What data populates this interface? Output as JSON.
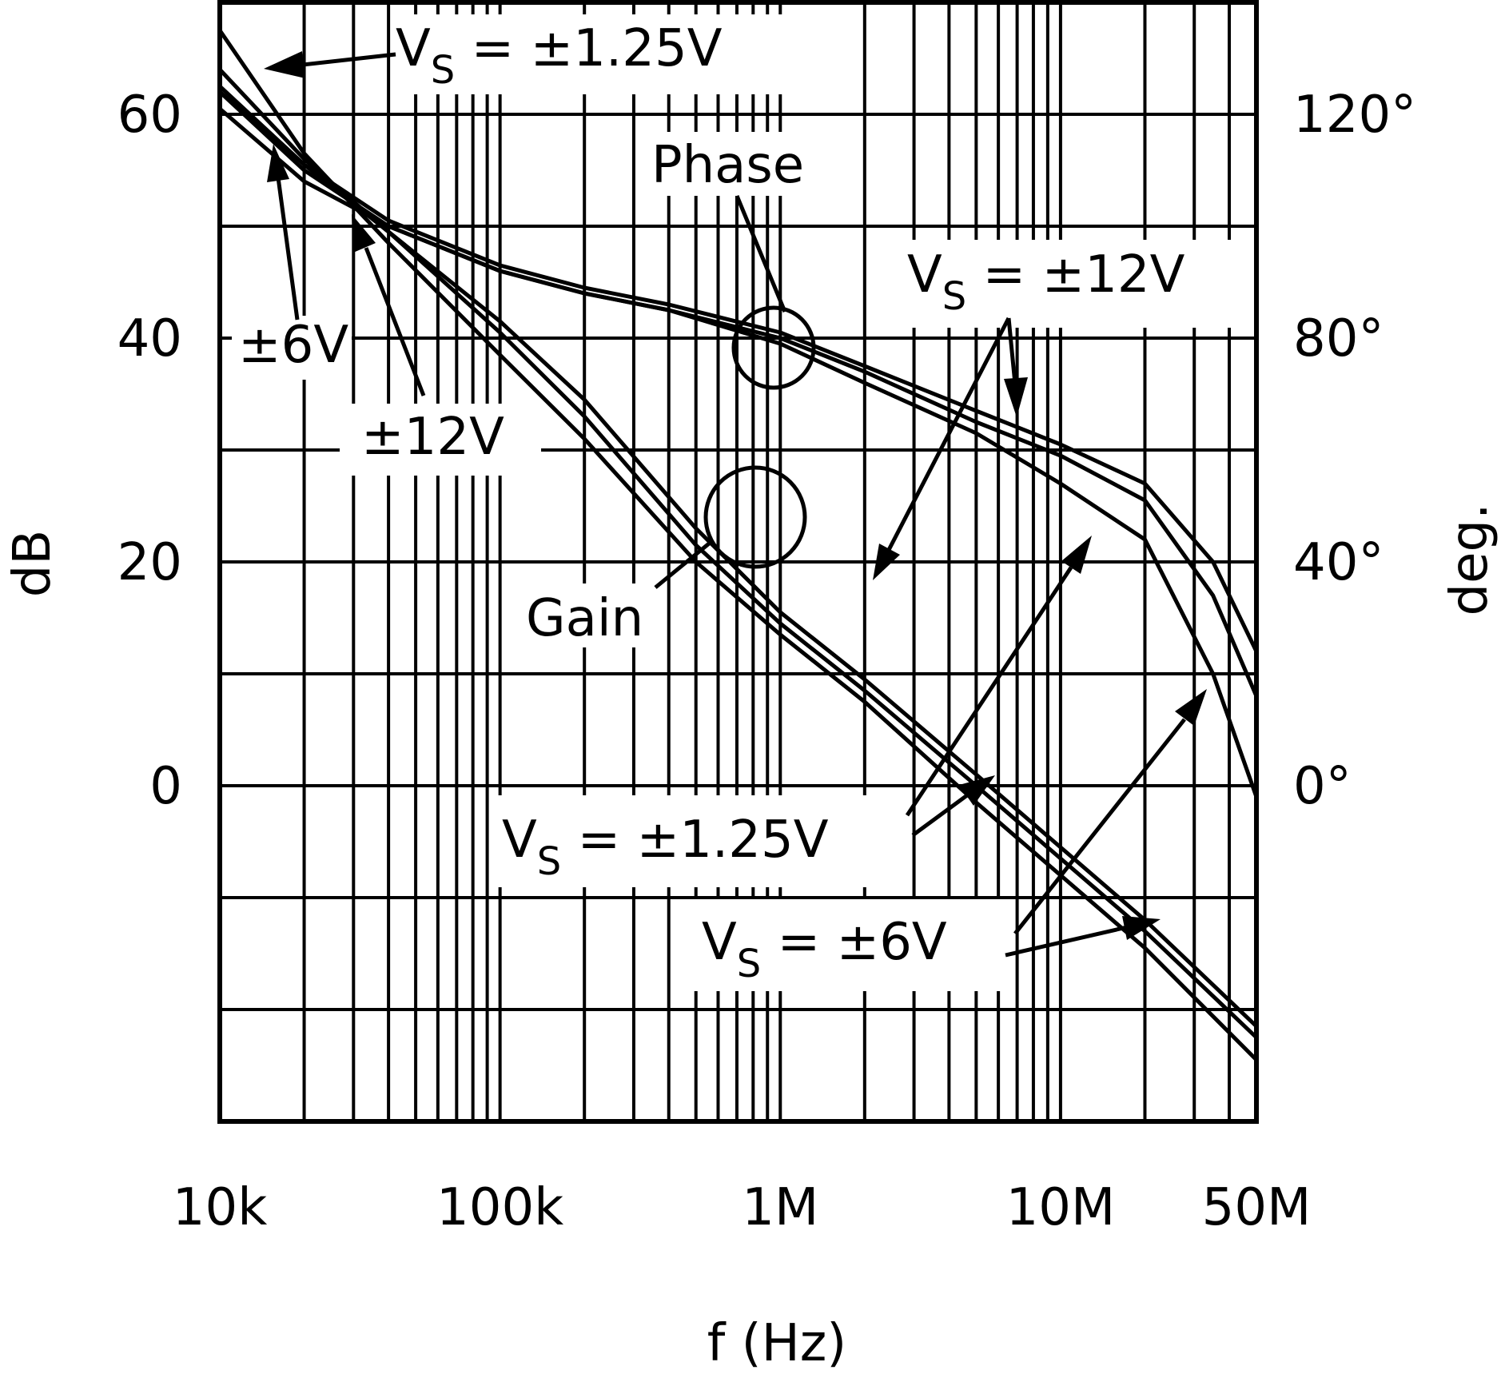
{
  "chart_data": {
    "type": "line",
    "xlabel": "f (Hz)",
    "ylabel_left": "dB",
    "ylabel_right": "deg.",
    "x_scale": "log",
    "xlim": [
      10000,
      50000000
    ],
    "ylim_left": [
      -30,
      70
    ],
    "ylim_right": [
      -60,
      140
    ],
    "grid": true,
    "x_ticks": [
      {
        "value": 10000,
        "label": "10k"
      },
      {
        "value": 100000,
        "label": "100k"
      },
      {
        "value": 1000000,
        "label": "1M"
      },
      {
        "value": 10000000,
        "label": "10M"
      },
      {
        "value": 50000000,
        "label": "50M"
      }
    ],
    "y_ticks_left": [
      {
        "value": 0,
        "label": "0"
      },
      {
        "value": 20,
        "label": "20"
      },
      {
        "value": 40,
        "label": "40"
      },
      {
        "value": 60,
        "label": "60"
      }
    ],
    "y_ticks_right": [
      {
        "value": 0,
        "label": "0°"
      },
      {
        "value": 40,
        "label": "40°"
      },
      {
        "value": 80,
        "label": "80°"
      },
      {
        "value": 120,
        "label": "120°"
      }
    ],
    "series": [
      {
        "axis": "left",
        "x": [
          10000,
          20000,
          40000,
          100000,
          200000,
          500000,
          1000000,
          2000000,
          5000000,
          10000000,
          20000000,
          50000000
        ],
        "y": [
          67.5,
          56.5,
          48.5,
          38.5,
          31,
          20,
          13.5,
          7.5,
          -1.5,
          -8,
          -14.5,
          -24.5
        ]
      },
      {
        "axis": "left",
        "x": [
          10000,
          20000,
          40000,
          100000,
          200000,
          500000,
          1000000,
          2000000,
          5000000,
          10000000,
          20000000,
          50000000
        ],
        "y": [
          64,
          56,
          49.5,
          40.5,
          33,
          21.5,
          14.5,
          8.5,
          0,
          -6.5,
          -13,
          -22.5
        ]
      },
      {
        "axis": "left",
        "x": [
          10000,
          20000,
          40000,
          100000,
          200000,
          500000,
          1000000,
          2000000,
          5000000,
          10000000,
          20000000,
          50000000
        ],
        "y": [
          62.5,
          55.5,
          49.5,
          41.5,
          34.5,
          23,
          15.5,
          9.5,
          1,
          -5.5,
          -12,
          -21.5
        ]
      },
      {
        "axis": "right",
        "x": [
          10000,
          20000,
          40000,
          100000,
          200000,
          400000,
          1000000,
          2000000,
          5000000,
          10000000,
          20000000,
          35000000,
          50000000
        ],
        "y": [
          124,
          110,
          100,
          92,
          88,
          85,
          79,
          72,
          63,
          54,
          44,
          20,
          -2
        ]
      },
      {
        "axis": "right",
        "x": [
          10000,
          20000,
          40000,
          100000,
          200000,
          400000,
          1000000,
          2000000,
          5000000,
          10000000,
          20000000,
          35000000,
          50000000
        ],
        "y": [
          121,
          108,
          100,
          92,
          88,
          85,
          80,
          74,
          65,
          59,
          51,
          34,
          16
        ]
      },
      {
        "axis": "right",
        "x": [
          10000,
          20000,
          40000,
          100000,
          200000,
          400000,
          1000000,
          2000000,
          5000000,
          10000000,
          20000000,
          35000000,
          50000000
        ],
        "y": [
          124,
          111,
          101,
          93,
          89,
          86,
          81,
          75,
          67,
          61,
          54,
          40,
          24
        ]
      }
    ],
    "annotations": {
      "vs_125_top": "V",
      "vs_125_top_sub": "S",
      "vs_125_top_rest": " = ±1.25V",
      "pm6_left": "±6V",
      "pm12_left": "±12V",
      "phase": "Phase",
      "gain": "Gain",
      "vs_12": "V",
      "vs_12_sub": "S",
      "vs_12_rest": " = ±12V",
      "vs_125_bottom": "V",
      "vs_125_bottom_sub": "S",
      "vs_125_bottom_rest": " = ±1.25V",
      "vs_6": "V",
      "vs_6_sub": "S",
      "vs_6_rest": " = ±6V"
    }
  }
}
